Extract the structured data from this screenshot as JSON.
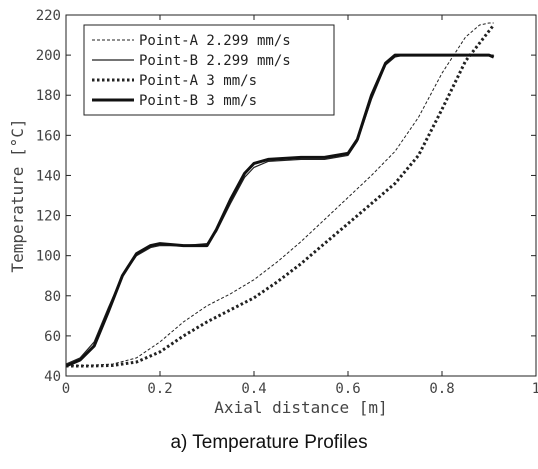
{
  "caption": "a) Temperature Profiles",
  "chart_data": {
    "type": "line",
    "title": "",
    "xlabel": "Axial distance [m]",
    "ylabel": "Temperature [°C]",
    "xlim": [
      0,
      1
    ],
    "ylim": [
      40,
      220
    ],
    "xticks": [
      0,
      0.2,
      0.4,
      0.6,
      0.8,
      1
    ],
    "xtick_labels": [
      "0",
      "0.2",
      "0.4",
      "0.6",
      "0.8",
      "1"
    ],
    "yticks": [
      40,
      60,
      80,
      100,
      120,
      140,
      160,
      180,
      200,
      220
    ],
    "ytick_labels": [
      "40",
      "60",
      "80",
      "100",
      "120",
      "140",
      "160",
      "180",
      "200",
      "220"
    ],
    "grid": false,
    "legend_position": "top-left",
    "series": [
      {
        "name": "Point-A 2.299 mm/s",
        "style": "thin-dashed",
        "color": "#222222",
        "x": [
          0,
          0.05,
          0.1,
          0.15,
          0.2,
          0.25,
          0.3,
          0.35,
          0.4,
          0.45,
          0.5,
          0.55,
          0.6,
          0.65,
          0.7,
          0.75,
          0.8,
          0.85,
          0.88,
          0.9,
          0.91
        ],
        "y": [
          45,
          45.3,
          46,
          49,
          57,
          67,
          75,
          81,
          88,
          97,
          107,
          118,
          129,
          140,
          152,
          169,
          191,
          209,
          215,
          216,
          216
        ]
      },
      {
        "name": "Point-B 2.299 mm/s",
        "style": "thin-solid",
        "color": "#222222",
        "x": [
          0,
          0.03,
          0.06,
          0.09,
          0.12,
          0.15,
          0.18,
          0.2,
          0.25,
          0.3,
          0.32,
          0.35,
          0.38,
          0.4,
          0.43,
          0.5,
          0.55,
          0.6,
          0.62,
          0.65,
          0.68,
          0.7,
          0.72,
          0.8,
          0.9,
          0.91
        ],
        "y": [
          46,
          49,
          57,
          74,
          90,
          100,
          104,
          105,
          105,
          106,
          112,
          126,
          139,
          144,
          147,
          148,
          148,
          150,
          157,
          178,
          195,
          199,
          200,
          200,
          200,
          200
        ]
      },
      {
        "name": "Point-A 3 mm/s",
        "style": "thick-dotted",
        "color": "#222222",
        "x": [
          0,
          0.05,
          0.1,
          0.15,
          0.2,
          0.25,
          0.3,
          0.35,
          0.4,
          0.45,
          0.5,
          0.55,
          0.6,
          0.65,
          0.7,
          0.75,
          0.8,
          0.85,
          0.9,
          0.91
        ],
        "y": [
          45,
          45,
          45.3,
          47,
          52,
          60,
          67,
          73,
          79,
          87,
          96,
          106,
          116,
          126,
          136,
          150,
          173,
          197,
          212,
          215
        ]
      },
      {
        "name": "Point-B 3 mm/s",
        "style": "thick-solid",
        "color": "#111111",
        "x": [
          0,
          0.03,
          0.06,
          0.09,
          0.12,
          0.15,
          0.18,
          0.2,
          0.25,
          0.3,
          0.32,
          0.35,
          0.38,
          0.4,
          0.43,
          0.5,
          0.55,
          0.6,
          0.62,
          0.65,
          0.68,
          0.7,
          0.72,
          0.8,
          0.9,
          0.91
        ],
        "y": [
          45,
          48,
          55,
          72,
          90,
          101,
          105,
          106,
          105,
          105,
          113,
          128,
          141,
          146,
          148,
          149,
          149,
          151,
          158,
          180,
          196,
          200,
          200,
          200,
          200,
          199
        ]
      }
    ]
  }
}
